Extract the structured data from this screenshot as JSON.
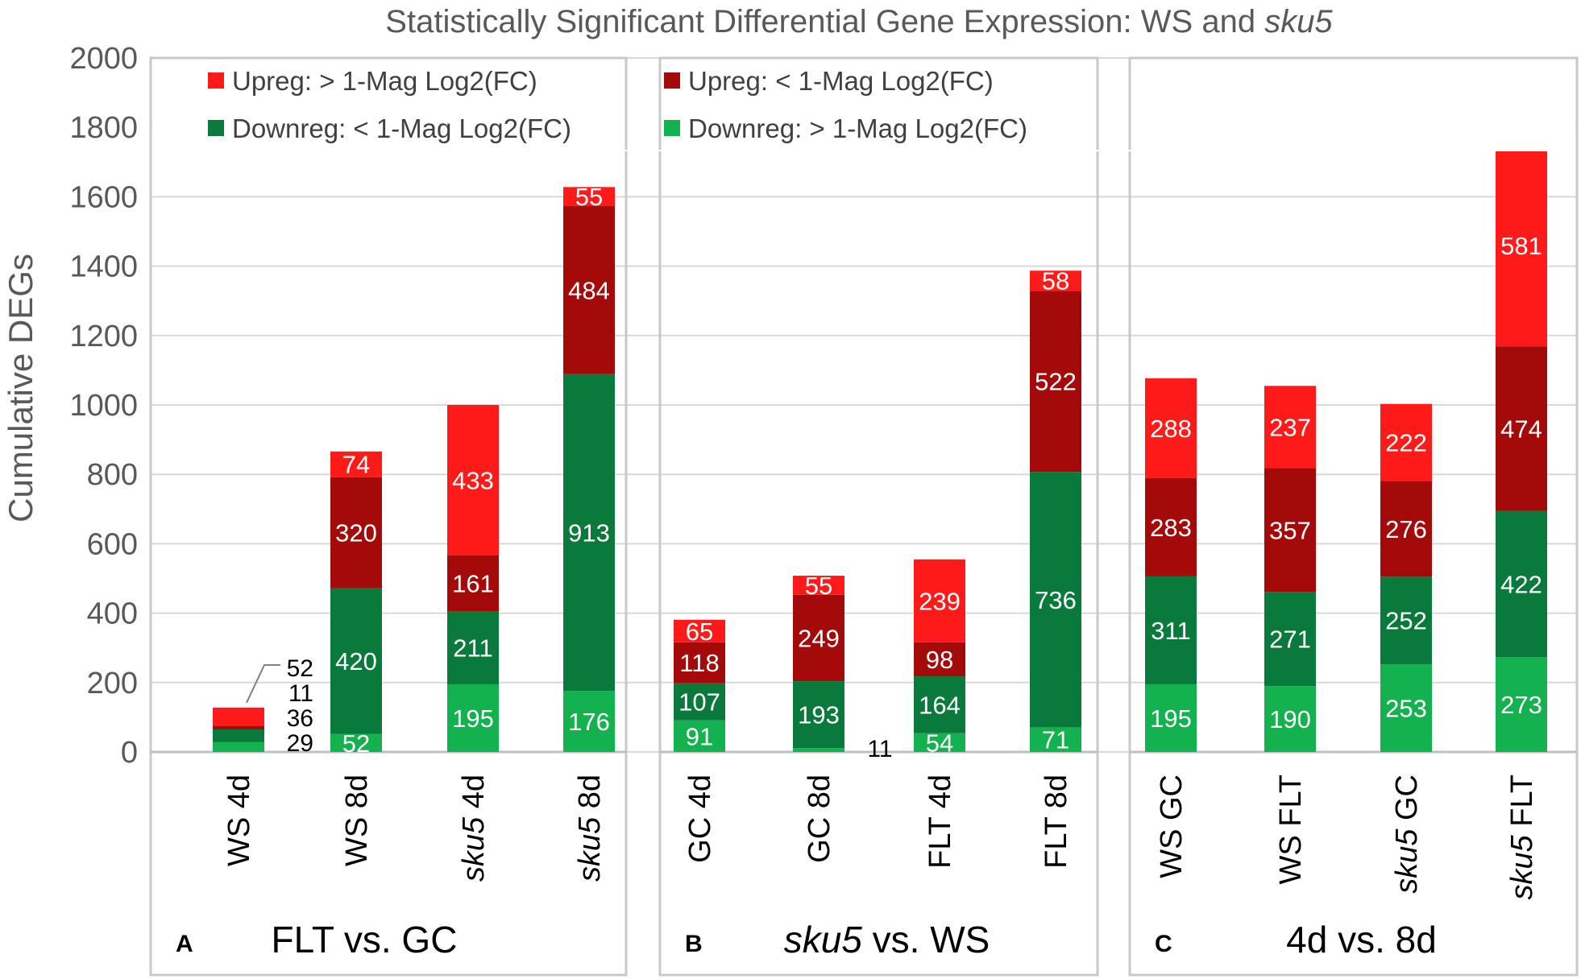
{
  "chart_data": {
    "type": "bar",
    "stacked": true,
    "title": {
      "prefix": "Statistically Significant Differential Gene Expression: WS and ",
      "italic": "sku5"
    },
    "ylabel": "Cumulative DEGs",
    "ylim": [
      0,
      2000
    ],
    "yticks": [
      "0",
      "200",
      "400",
      "600",
      "800",
      "1000",
      "1200",
      "1400",
      "1600",
      "1800",
      "2000"
    ],
    "grid": true,
    "legend": [
      {
        "label": "Upreg: > 1-Mag Log2(FC)",
        "color": "#ff1a1a"
      },
      {
        "label": "Downreg: < 1-Mag Log2(FC)",
        "color": "#0a7a3c"
      },
      {
        "label": "Upreg: < 1-Mag Log2(FC)",
        "color": "#a50a0a"
      },
      {
        "label": "Downreg: > 1-Mag Log2(FC)",
        "color": "#14b14f"
      }
    ],
    "series": [
      {
        "name": "Downreg: > 1-Mag Log2(FC)",
        "color": "#14b14f"
      },
      {
        "name": "Downreg: < 1-Mag Log2(FC)",
        "color": "#0a7a3c"
      },
      {
        "name": "Upreg: < 1-Mag Log2(FC)",
        "color": "#a50a0a"
      },
      {
        "name": "Upreg: > 1-Mag Log2(FC)",
        "color": "#ff1a1a"
      }
    ],
    "panels": [
      {
        "letter": "A",
        "title": {
          "italic": "",
          "text": "FLT vs. GC"
        },
        "categories": [
          {
            "italic": "",
            "rest": "WS 4d",
            "values": [
              29,
              36,
              11,
              52
            ]
          },
          {
            "italic": "",
            "rest": "WS 8d",
            "values": [
              52,
              420,
              320,
              74
            ]
          },
          {
            "italic": "sku5",
            "rest": " 4d",
            "values": [
              195,
              211,
              161,
              433
            ]
          },
          {
            "italic": "sku5",
            "rest": " 8d",
            "values": [
              176,
              913,
              484,
              55
            ]
          }
        ]
      },
      {
        "letter": "B",
        "title": {
          "italic": "sku5",
          "text": " vs. WS"
        },
        "categories": [
          {
            "italic": "",
            "rest": "GC 4d",
            "values": [
              91,
              107,
              118,
              65
            ]
          },
          {
            "italic": "",
            "rest": "GC 8d",
            "values": [
              11,
              193,
              249,
              55
            ]
          },
          {
            "italic": "",
            "rest": "FLT 4d",
            "values": [
              54,
              164,
              98,
              239
            ]
          },
          {
            "italic": "",
            "rest": "FLT 8d",
            "values": [
              71,
              736,
              522,
              58
            ]
          }
        ]
      },
      {
        "letter": "C",
        "title": {
          "italic": "",
          "text": "4d vs. 8d"
        },
        "categories": [
          {
            "italic": "",
            "rest": "WS GC",
            "values": [
              195,
              311,
              283,
              288
            ]
          },
          {
            "italic": "",
            "rest": "WS FLT",
            "values": [
              190,
              271,
              357,
              237
            ]
          },
          {
            "italic": "sku5",
            "rest": " GC",
            "values": [
              253,
              252,
              276,
              222
            ]
          },
          {
            "italic": "sku5",
            "rest": " FLT",
            "values": [
              273,
              422,
              474,
              581
            ]
          }
        ]
      }
    ]
  }
}
